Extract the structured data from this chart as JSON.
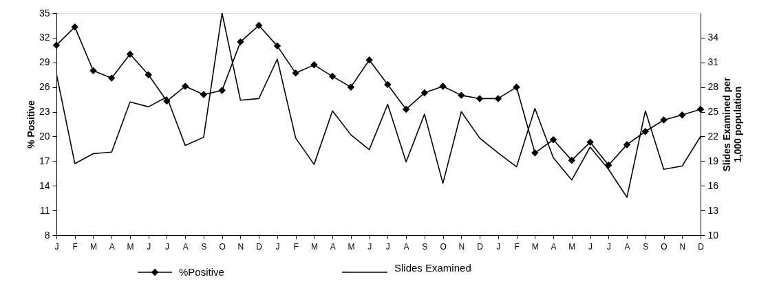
{
  "chart_data": {
    "type": "line",
    "ylabel": "% Positive",
    "y2label": "Slides Examined per 1,000 population",
    "categories": [
      "J",
      "F",
      "M",
      "A",
      "M",
      "J",
      "J",
      "A",
      "S",
      "O",
      "N",
      "D",
      "J",
      "F",
      "M",
      "A",
      "M",
      "J",
      "J",
      "A",
      "S",
      "O",
      "N",
      "D",
      "J",
      "F",
      "M",
      "A",
      "M",
      "J",
      "J",
      "A",
      "S",
      "O",
      "N",
      "D"
    ],
    "series": [
      {
        "name": "%Positive",
        "color": "#000000",
        "marker": "diamond",
        "values": [
          31.1,
          33.3,
          28.0,
          27.1,
          30.0,
          27.5,
          24.3,
          26.1,
          25.1,
          25.6,
          31.5,
          33.5,
          31.0,
          27.7,
          28.7,
          27.3,
          26.0,
          29.3,
          26.3,
          23.3,
          25.3,
          26.1,
          25.0,
          24.6,
          24.6,
          26.0,
          18.0,
          19.6,
          17.1,
          19.3,
          16.5,
          19.0,
          20.6,
          22.0,
          22.6,
          23.3
        ]
      },
      {
        "name": "Slides Examined",
        "color": "#000000",
        "marker": "none",
        "axis": "y2",
        "values": [
          29.6,
          18.7,
          19.9,
          20.1,
          26.2,
          25.6,
          26.8,
          20.9,
          21.9,
          37.0,
          26.4,
          26.6,
          31.4,
          21.8,
          18.6,
          25.1,
          22.2,
          20.4,
          25.9,
          18.9,
          24.7,
          16.3,
          25.0,
          21.8,
          20.0,
          18.3,
          25.4,
          19.4,
          16.7,
          20.7,
          18.0,
          14.6,
          25.1,
          18.0,
          18.4,
          22.0
        ]
      }
    ],
    "ylim": [
      8,
      35
    ],
    "yticks": [
      8,
      11,
      14,
      17,
      20,
      23,
      26,
      29,
      32,
      35
    ],
    "y2lim": [
      10,
      37
    ],
    "y2ticks": [
      10,
      13,
      16,
      19,
      22,
      25,
      28,
      31,
      34
    ],
    "grid": false,
    "legend": "bottom",
    "line_style": "solid"
  }
}
